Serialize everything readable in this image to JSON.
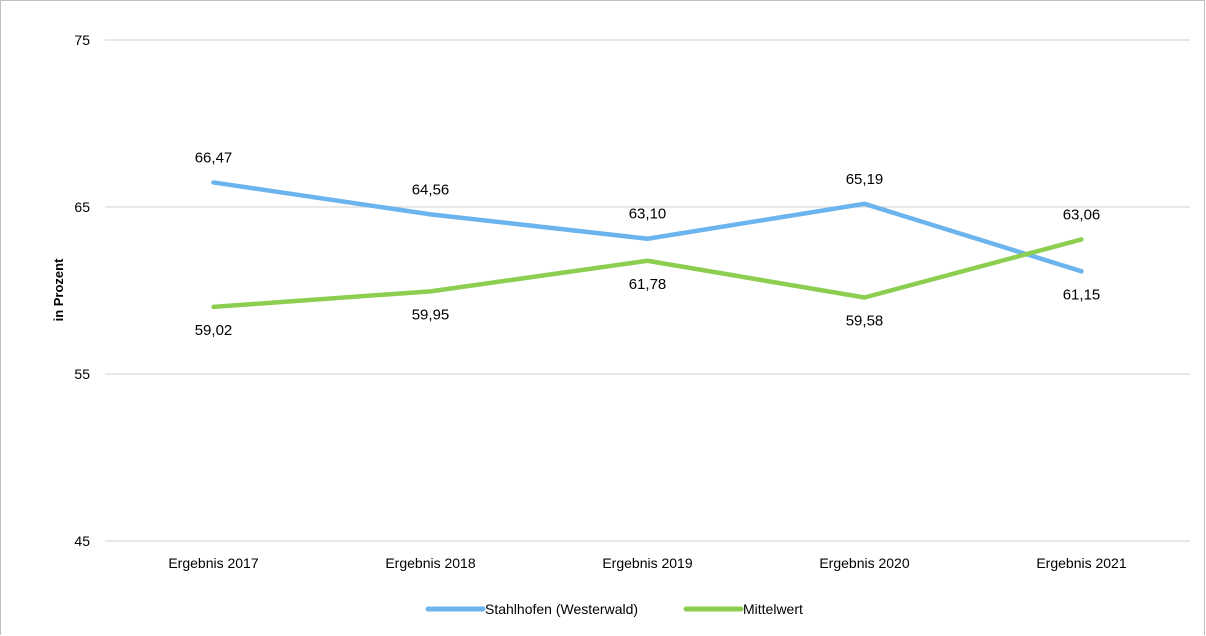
{
  "chart_data": {
    "type": "line",
    "categories": [
      "Ergebnis 2017",
      "Ergebnis 2018",
      "Ergebnis 2019",
      "Ergebnis 2020",
      "Ergebnis 2021"
    ],
    "series": [
      {
        "name": "Stahlhofen (Westerwald)",
        "values": [
          66.47,
          64.56,
          63.1,
          65.19,
          61.15
        ],
        "labels": [
          "66,47",
          "64,56",
          "63,10",
          "65,19",
          "61,15"
        ],
        "label_side": [
          "above",
          "above",
          "above",
          "above",
          "below"
        ],
        "color": "#6cb4ee"
      },
      {
        "name": "Mittelwert",
        "values": [
          59.02,
          59.95,
          61.78,
          59.58,
          63.06
        ],
        "labels": [
          "59,02",
          "59,95",
          "61,78",
          "59,58",
          "63,06"
        ],
        "label_side": [
          "below",
          "below",
          "below",
          "below",
          "above"
        ],
        "color": "#8cce50"
      }
    ],
    "ylabel": "in Prozent",
    "ylim": [
      45,
      75
    ],
    "yticks": [
      45,
      55,
      65,
      75
    ],
    "grid": true,
    "legend": "bottom"
  }
}
